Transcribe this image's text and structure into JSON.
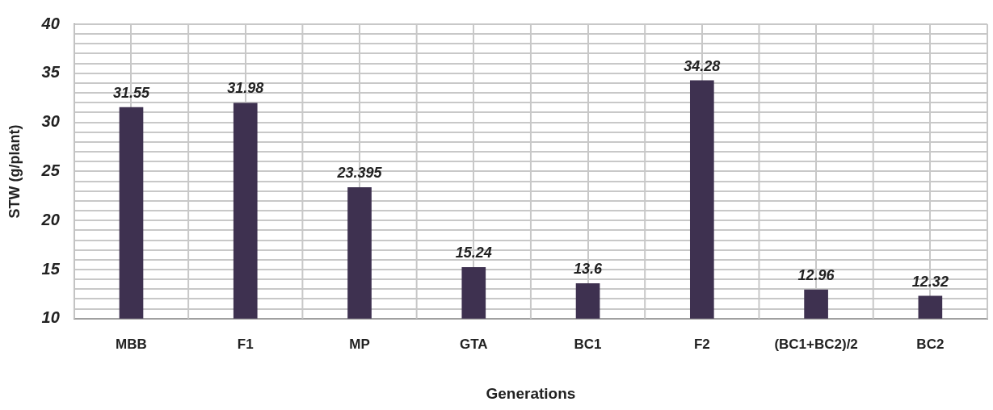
{
  "chart_data": {
    "type": "bar",
    "xlabel": "Generations",
    "ylabel": "STW (g/plant)",
    "categories": [
      "MBB",
      "F1",
      "MP",
      "GTA",
      "BC1",
      "F2",
      "(BC1+BC2)/2",
      "BC2"
    ],
    "values": [
      31.55,
      31.98,
      23.395,
      15.24,
      13.6,
      34.28,
      12.96,
      12.32
    ],
    "color": "#3e3150",
    "ylim": [
      10,
      40
    ],
    "yticks": [
      10,
      {
        "value": 11,
        "label": null
      },
      {
        "value": 12,
        "label": null
      },
      {
        "value": 13,
        "label": null
      },
      {
        "value": 14,
        "label": null
      },
      15,
      {
        "value": 16,
        "label": null
      },
      {
        "value": 17,
        "label": null
      },
      {
        "value": 18,
        "label": null
      },
      {
        "value": 19,
        "label": null
      },
      20,
      {
        "value": 21,
        "label": null
      },
      {
        "value": 22,
        "label": null
      },
      {
        "value": 23,
        "label": null
      },
      {
        "value": 24,
        "label": null
      },
      25,
      {
        "value": 26,
        "label": null
      },
      {
        "value": 27,
        "label": null
      },
      {
        "value": 28,
        "label": null
      },
      {
        "value": 29,
        "label": null
      },
      30,
      {
        "value": 31,
        "label": null
      },
      {
        "value": 32,
        "label": null
      },
      {
        "value": 33,
        "label": null
      },
      {
        "value": 34,
        "label": null
      },
      35,
      {
        "value": 36,
        "label": null
      },
      {
        "value": 37,
        "label": null
      },
      {
        "value": 38,
        "label": null
      },
      {
        "value": 39,
        "label": null
      },
      40
    ],
    "grid": true,
    "data_labels": true
  }
}
